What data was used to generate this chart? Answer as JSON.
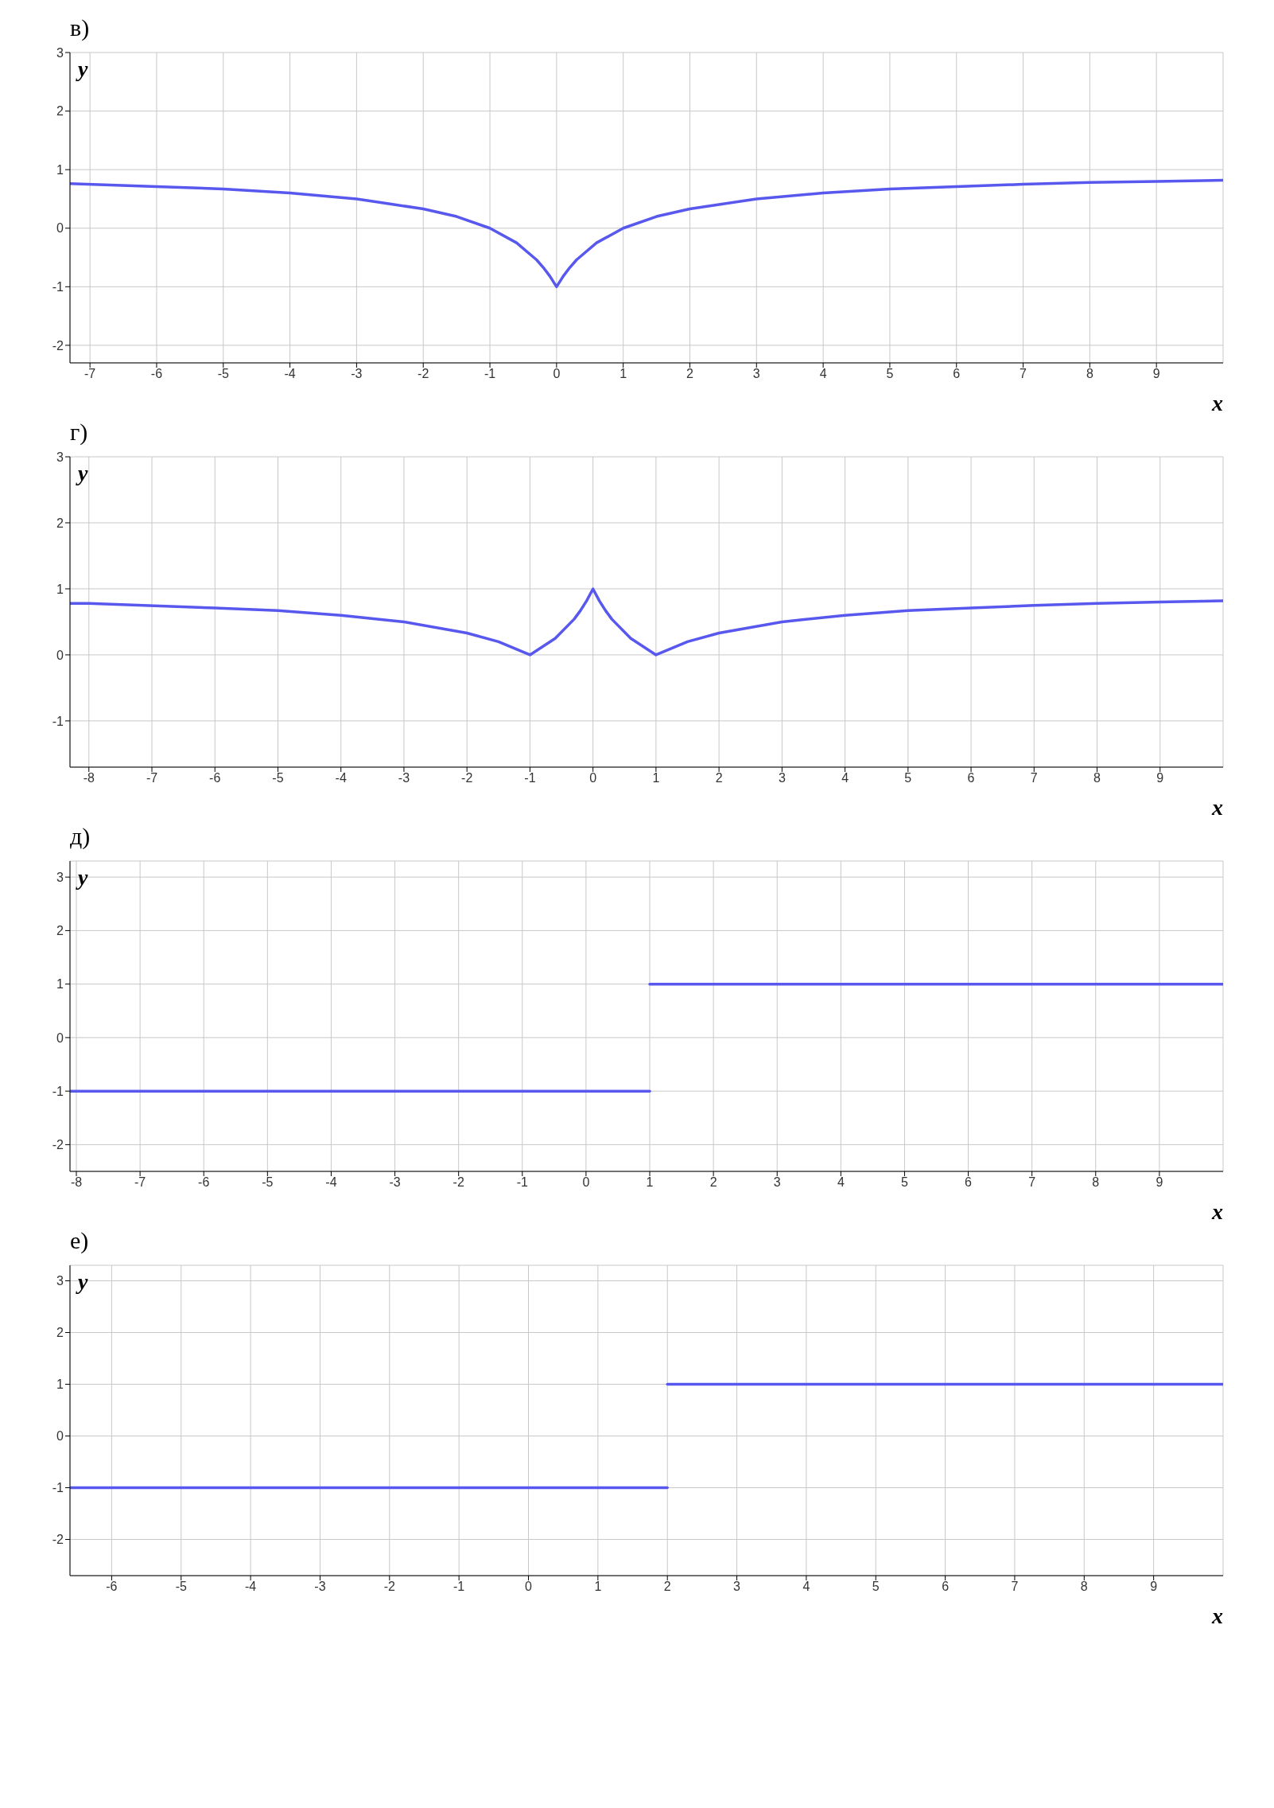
{
  "chart_data": [
    {
      "type": "line",
      "title": "в)",
      "xlabel": "x",
      "ylabel": "y",
      "xlim": [
        -7.3,
        10
      ],
      "ylim": [
        -2.3,
        3
      ],
      "xticks": [
        -7,
        -6,
        -5,
        -4,
        -3,
        -2,
        -1,
        0,
        1,
        2,
        3,
        4,
        5,
        6,
        7,
        8,
        9
      ],
      "yticks": [
        -2,
        -1,
        0,
        1,
        2,
        3
      ],
      "grid": true,
      "line_style": "solid",
      "series": [
        {
          "color": "#5858ee",
          "x": [
            -7.3,
            -6,
            -5,
            -4,
            -3,
            -2,
            -1.5,
            -1,
            -0.6,
            -0.3,
            -0.2,
            -0.1,
            0,
            0.1,
            0.2,
            0.3,
            0.6,
            1,
            1.5,
            2,
            3,
            4,
            5,
            6,
            7,
            8,
            9,
            10
          ],
          "values": [
            0.76,
            0.71,
            0.67,
            0.6,
            0.5,
            0.33,
            0.2,
            0,
            -0.25,
            -0.54,
            -0.67,
            -0.82,
            -1,
            -0.82,
            -0.67,
            -0.54,
            -0.25,
            0,
            0.2,
            0.33,
            0.5,
            0.6,
            0.67,
            0.71,
            0.75,
            0.78,
            0.8,
            0.82
          ]
        }
      ]
    },
    {
      "type": "line",
      "title": "г)",
      "xlabel": "x",
      "ylabel": "y",
      "xlim": [
        -8.3,
        10
      ],
      "ylim": [
        -1.7,
        3
      ],
      "xticks": [
        -8,
        -7,
        -6,
        -5,
        -4,
        -3,
        -2,
        -1,
        0,
        1,
        2,
        3,
        4,
        5,
        6,
        7,
        8,
        9
      ],
      "yticks": [
        -1,
        0,
        1,
        2,
        3
      ],
      "grid": true,
      "line_style": "solid",
      "series": [
        {
          "color": "#5858ee",
          "x": [
            -8.3,
            -8,
            -6,
            -5,
            -4,
            -3,
            -2,
            -1.5,
            -1,
            -0.6,
            -0.3,
            -0.2,
            -0.1,
            0,
            0.1,
            0.2,
            0.3,
            0.6,
            1,
            1.5,
            2,
            3,
            4,
            5,
            6,
            7,
            8,
            9,
            10
          ],
          "values": [
            0.78,
            0.78,
            0.71,
            0.67,
            0.6,
            0.5,
            0.33,
            0.2,
            0,
            0.25,
            0.54,
            0.67,
            0.82,
            1,
            0.82,
            0.67,
            0.54,
            0.25,
            0,
            0.2,
            0.33,
            0.5,
            0.6,
            0.67,
            0.71,
            0.75,
            0.78,
            0.8,
            0.82
          ]
        }
      ]
    },
    {
      "type": "line",
      "title": "д)",
      "xlabel": "x",
      "ylabel": "y",
      "xlim": [
        -8.1,
        10
      ],
      "ylim": [
        -2.5,
        3.3
      ],
      "xticks": [
        -8,
        -7,
        -6,
        -5,
        -4,
        -3,
        -2,
        -1,
        0,
        1,
        2,
        3,
        4,
        5,
        6,
        7,
        8,
        9
      ],
      "yticks": [
        -2,
        -1,
        0,
        1,
        2,
        3
      ],
      "grid": true,
      "line_style": "solid",
      "series": [
        {
          "color": "#5858ee",
          "x": [
            -8.1,
            1
          ],
          "values": [
            -1,
            -1
          ]
        },
        {
          "color": "#5858ee",
          "x": [
            1,
            10
          ],
          "values": [
            1,
            1
          ]
        }
      ]
    },
    {
      "type": "line",
      "title": "е)",
      "xlabel": "x",
      "ylabel": "y",
      "xlim": [
        -6.6,
        10
      ],
      "ylim": [
        -2.7,
        3.3
      ],
      "xticks": [
        -6,
        -5,
        -4,
        -3,
        -2,
        -1,
        0,
        1,
        2,
        3,
        4,
        5,
        6,
        7,
        8,
        9
      ],
      "yticks": [
        -2,
        -1,
        0,
        1,
        2,
        3
      ],
      "grid": true,
      "line_style": "solid",
      "series": [
        {
          "color": "#5858ee",
          "x": [
            -6.6,
            2
          ],
          "values": [
            -1,
            -1
          ]
        },
        {
          "color": "#5858ee",
          "x": [
            2,
            10
          ],
          "values": [
            1,
            1
          ]
        }
      ]
    }
  ]
}
